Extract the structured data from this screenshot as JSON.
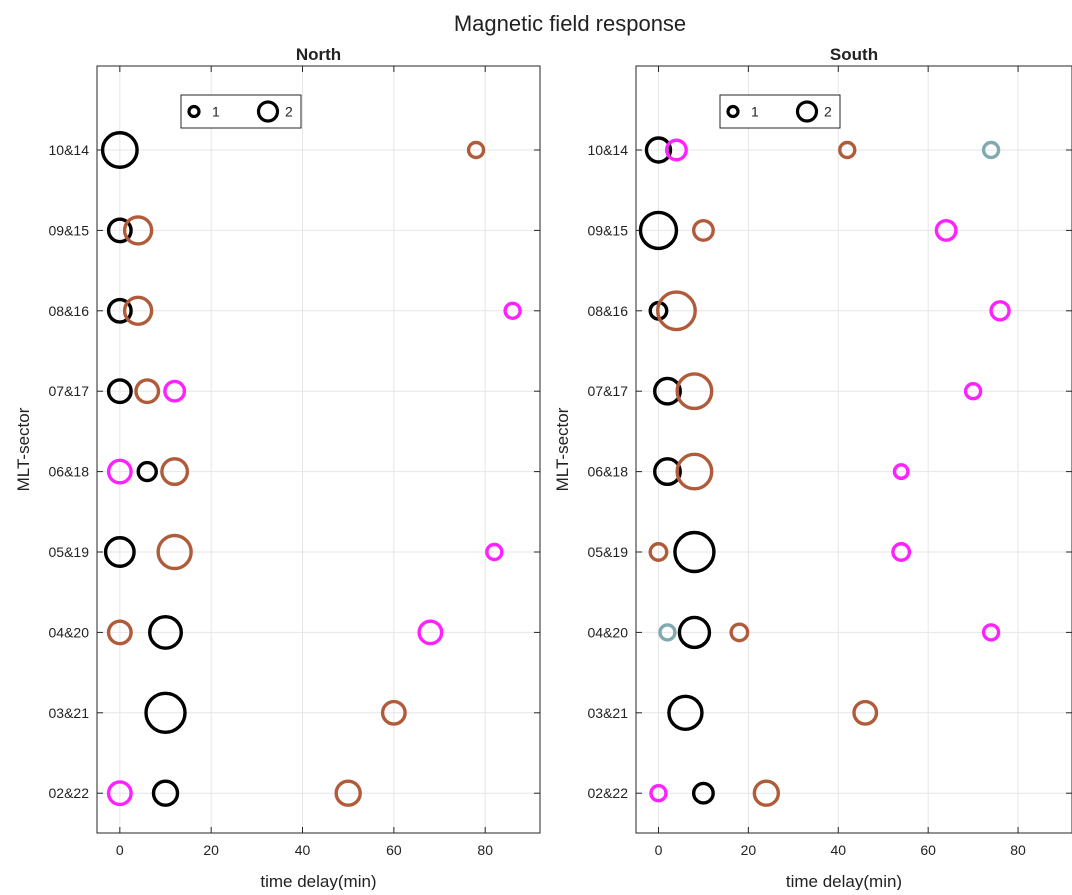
{
  "figure": {
    "title": "Magnetic field response"
  },
  "colors": {
    "black": "#000000",
    "brown": "#b05c3a",
    "magenta": "#ff21ff",
    "teal": "#7faab0"
  },
  "chart_data": [
    {
      "type": "scatter",
      "title": "North",
      "xlabel": "time delay(min)",
      "ylabel": "MLT-sector",
      "xlim": [
        -5,
        92
      ],
      "xticks": [
        0,
        20,
        40,
        60,
        80
      ],
      "categories": [
        "10&14",
        "09&15",
        "08&16",
        "07&17",
        "06&18",
        "05&19",
        "04&20",
        "03&21",
        "02&22"
      ],
      "grid": true,
      "legend": {
        "position": "top-left",
        "entries": [
          "1",
          "2"
        ]
      },
      "points": [
        {
          "sector": "10&14",
          "x": 0,
          "color": "black",
          "size": 2.3
        },
        {
          "sector": "10&14",
          "x": 78,
          "color": "brown",
          "size": 1.0
        },
        {
          "sector": "09&15",
          "x": 0,
          "color": "black",
          "size": 1.5
        },
        {
          "sector": "09&15",
          "x": 4,
          "color": "brown",
          "size": 1.8
        },
        {
          "sector": "08&16",
          "x": 0,
          "color": "black",
          "size": 1.5
        },
        {
          "sector": "08&16",
          "x": 4,
          "color": "brown",
          "size": 1.8
        },
        {
          "sector": "08&16",
          "x": 86,
          "color": "magenta",
          "size": 1.0
        },
        {
          "sector": "07&17",
          "x": 0,
          "color": "black",
          "size": 1.5
        },
        {
          "sector": "07&17",
          "x": 6,
          "color": "brown",
          "size": 1.5
        },
        {
          "sector": "07&17",
          "x": 12,
          "color": "magenta",
          "size": 1.3
        },
        {
          "sector": "06&18",
          "x": 0,
          "color": "magenta",
          "size": 1.5
        },
        {
          "sector": "06&18",
          "x": 6,
          "color": "black",
          "size": 1.2
        },
        {
          "sector": "06&18",
          "x": 12,
          "color": "brown",
          "size": 1.7
        },
        {
          "sector": "05&19",
          "x": 0,
          "color": "black",
          "size": 1.9
        },
        {
          "sector": "05&19",
          "x": 12,
          "color": "brown",
          "size": 2.2
        },
        {
          "sector": "05&19",
          "x": 82,
          "color": "magenta",
          "size": 1.0
        },
        {
          "sector": "04&20",
          "x": 0,
          "color": "brown",
          "size": 1.5
        },
        {
          "sector": "04&20",
          "x": 10,
          "color": "black",
          "size": 2.1
        },
        {
          "sector": "04&20",
          "x": 68,
          "color": "magenta",
          "size": 1.5
        },
        {
          "sector": "03&21",
          "x": 10,
          "color": "black",
          "size": 2.6
        },
        {
          "sector": "03&21",
          "x": 60,
          "color": "brown",
          "size": 1.5
        },
        {
          "sector": "02&22",
          "x": 0,
          "color": "magenta",
          "size": 1.5
        },
        {
          "sector": "02&22",
          "x": 10,
          "color": "black",
          "size": 1.6
        },
        {
          "sector": "02&22",
          "x": 50,
          "color": "brown",
          "size": 1.6
        }
      ]
    },
    {
      "type": "scatter",
      "title": "South",
      "xlabel": "time delay(min)",
      "ylabel": "MLT-sector",
      "xlim": [
        -5,
        92
      ],
      "xticks": [
        0,
        20,
        40,
        60,
        80
      ],
      "categories": [
        "10&14",
        "09&15",
        "08&16",
        "07&17",
        "06&18",
        "05&19",
        "04&20",
        "03&21",
        "02&22"
      ],
      "grid": true,
      "legend": {
        "position": "top-left",
        "entries": [
          "1",
          "2"
        ]
      },
      "points": [
        {
          "sector": "10&14",
          "x": 0,
          "color": "black",
          "size": 1.6
        },
        {
          "sector": "10&14",
          "x": 4,
          "color": "magenta",
          "size": 1.3
        },
        {
          "sector": "10&14",
          "x": 42,
          "color": "brown",
          "size": 1.0
        },
        {
          "sector": "10&14",
          "x": 74,
          "color": "teal",
          "size": 1.0
        },
        {
          "sector": "09&15",
          "x": 0,
          "color": "black",
          "size": 2.4
        },
        {
          "sector": "09&15",
          "x": 10,
          "color": "brown",
          "size": 1.3
        },
        {
          "sector": "09&15",
          "x": 64,
          "color": "magenta",
          "size": 1.3
        },
        {
          "sector": "08&16",
          "x": 0,
          "color": "black",
          "size": 1.1
        },
        {
          "sector": "08&16",
          "x": 4,
          "color": "brown",
          "size": 2.5
        },
        {
          "sector": "08&16",
          "x": 76,
          "color": "magenta",
          "size": 1.2
        },
        {
          "sector": "07&17",
          "x": 2,
          "color": "black",
          "size": 1.7
        },
        {
          "sector": "07&17",
          "x": 8,
          "color": "brown",
          "size": 2.3
        },
        {
          "sector": "07&17",
          "x": 70,
          "color": "magenta",
          "size": 1.0
        },
        {
          "sector": "06&18",
          "x": 2,
          "color": "black",
          "size": 1.7
        },
        {
          "sector": "06&18",
          "x": 8,
          "color": "brown",
          "size": 2.3
        },
        {
          "sector": "06&18",
          "x": 54,
          "color": "magenta",
          "size": 0.9
        },
        {
          "sector": "05&19",
          "x": 0,
          "color": "brown",
          "size": 1.1
        },
        {
          "sector": "05&19",
          "x": 8,
          "color": "black",
          "size": 2.6
        },
        {
          "sector": "05&19",
          "x": 54,
          "color": "magenta",
          "size": 1.1
        },
        {
          "sector": "04&20",
          "x": 2,
          "color": "teal",
          "size": 1.0
        },
        {
          "sector": "04&20",
          "x": 8,
          "color": "black",
          "size": 2.0
        },
        {
          "sector": "04&20",
          "x": 18,
          "color": "brown",
          "size": 1.1
        },
        {
          "sector": "04&20",
          "x": 74,
          "color": "magenta",
          "size": 1.0
        },
        {
          "sector": "03&21",
          "x": 6,
          "color": "black",
          "size": 2.2
        },
        {
          "sector": "03&21",
          "x": 46,
          "color": "brown",
          "size": 1.5
        },
        {
          "sector": "02&22",
          "x": 0,
          "color": "magenta",
          "size": 1.0
        },
        {
          "sector": "02&22",
          "x": 10,
          "color": "black",
          "size": 1.3
        },
        {
          "sector": "02&22",
          "x": 24,
          "color": "brown",
          "size": 1.6
        }
      ]
    }
  ]
}
